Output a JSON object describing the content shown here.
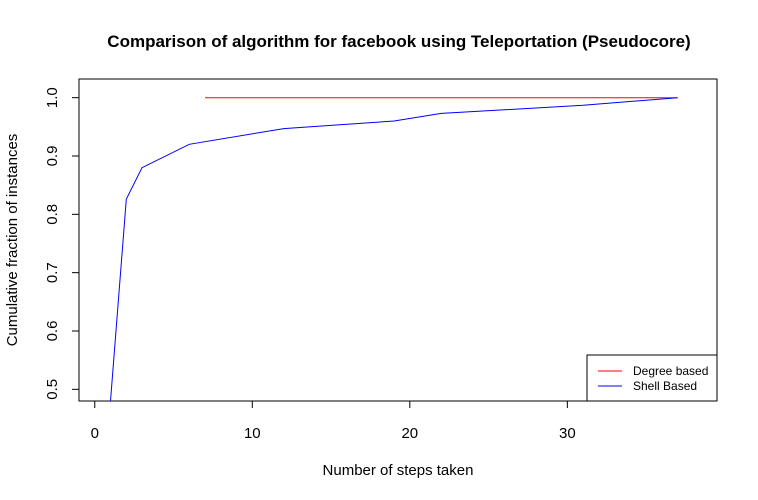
{
  "chart_data": {
    "type": "line",
    "title": "Comparison of algorithm for facebook using Teleportation (Pseudocore)",
    "xlabel": "Number of steps taken",
    "ylabel": "Cumulative fraction of instances",
    "xlim": [
      -1,
      39.5
    ],
    "ylim": [
      0.48,
      1.032
    ],
    "xticks": [
      0,
      10,
      20,
      30
    ],
    "yticks": [
      0.5,
      0.6,
      0.7,
      0.8,
      0.9,
      1.0
    ],
    "ytick_labels": [
      "0.5",
      "0.6",
      "0.7",
      "0.8",
      "0.9",
      "1.0"
    ],
    "grid": false,
    "legend": "bottom-right",
    "series": [
      {
        "name": "Degree based",
        "color": "#ff0000",
        "points": [
          [
            7,
            1.0
          ],
          [
            37,
            1.0
          ]
        ]
      },
      {
        "name": "Shell Based",
        "color": "#0000ff",
        "points": [
          [
            1,
            0.48
          ],
          [
            2,
            0.826
          ],
          [
            3,
            0.88
          ],
          [
            6,
            0.92
          ],
          [
            12,
            0.947
          ],
          [
            19,
            0.96
          ],
          [
            22,
            0.973
          ],
          [
            31,
            0.987
          ],
          [
            37,
            1.0
          ]
        ]
      }
    ]
  }
}
